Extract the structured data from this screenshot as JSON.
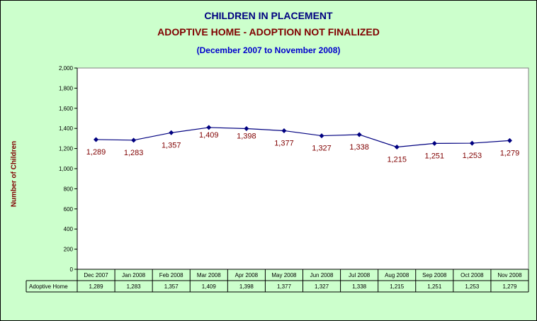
{
  "header": {
    "title": "CHILDREN IN PLACEMENT",
    "subtitle": "ADOPTIVE HOME -  ADOPTION NOT FINALIZED",
    "period": "(December 2007 to November 2008)"
  },
  "colors": {
    "background": "#ccffcc",
    "plot_area": "#ffffff",
    "series_line": "#000080",
    "data_label": "#800000",
    "title": "#000080",
    "subtitle": "#800000",
    "period": "#0000cc"
  },
  "chart_data": {
    "type": "line",
    "title": "CHILDREN IN PLACEMENT",
    "subtitle": "ADOPTIVE HOME -  ADOPTION NOT FINALIZED",
    "xlabel": "",
    "ylabel": "Number of Children",
    "ylim": [
      0,
      2000
    ],
    "ytick_step": 200,
    "yticks": [
      "0",
      "200",
      "400",
      "600",
      "800",
      "1,000",
      "1,200",
      "1,400",
      "1,600",
      "1,800",
      "2,000"
    ],
    "grid": false,
    "categories": [
      "Dec 2007",
      "Jan 2008",
      "Feb 2008",
      "Mar 2008",
      "Apr 2008",
      "May 2008",
      "Jun 2008",
      "Jul 2008",
      "Aug 2008",
      "Sep 2008",
      "Oct 2008",
      "Nov 2008"
    ],
    "series": [
      {
        "name": "Adoptive Home",
        "values": [
          1289,
          1283,
          1357,
          1409,
          1398,
          1377,
          1327,
          1338,
          1215,
          1251,
          1253,
          1279
        ],
        "labels": [
          "1,289",
          "1,283",
          "1,357",
          "1,409",
          "1,398",
          "1,377",
          "1,327",
          "1,338",
          "1,215",
          "1,251",
          "1,253",
          "1,279"
        ]
      }
    ],
    "data_table": true
  }
}
